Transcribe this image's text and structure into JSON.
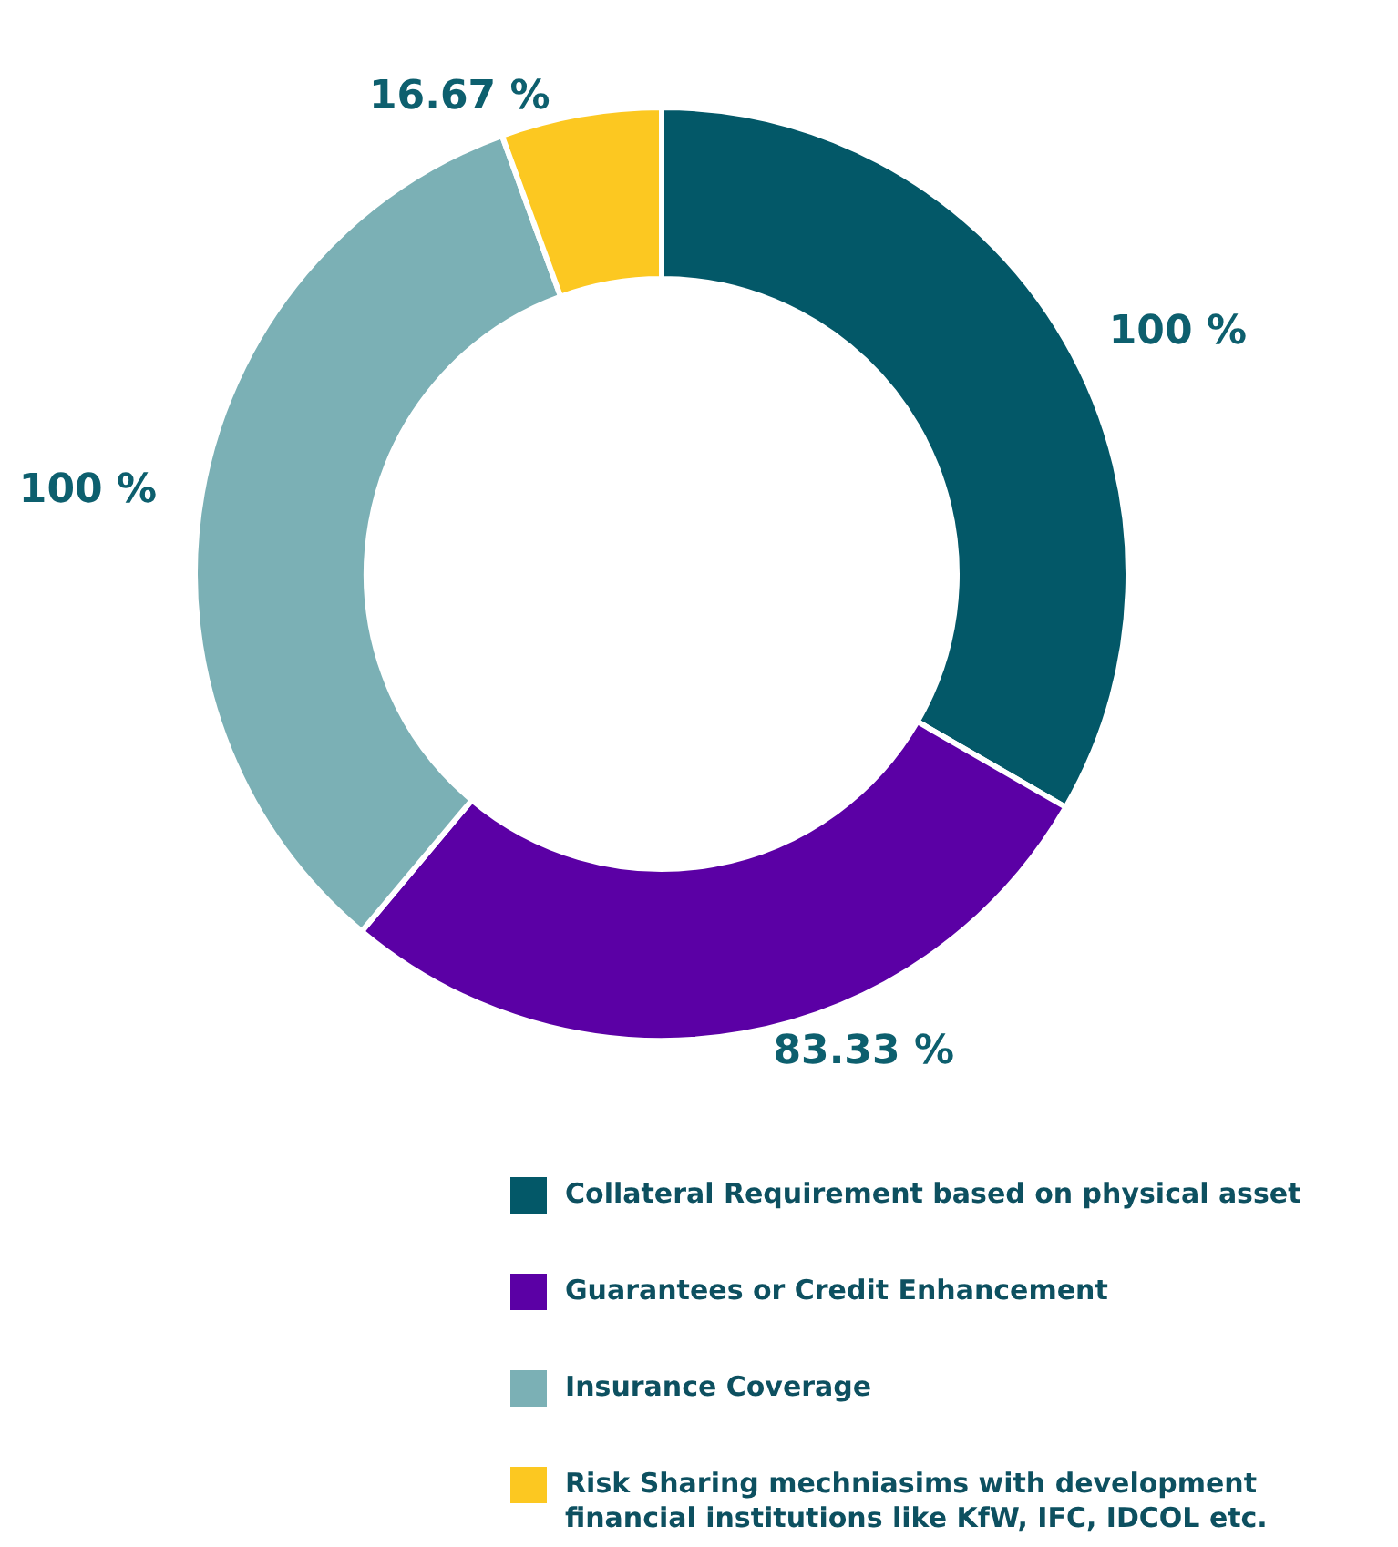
{
  "chart_data": {
    "type": "donut",
    "categories": [
      "Collateral Requirement based on physical asset",
      "Guarantees or Credit Enhancement",
      "Insurance Coverage",
      "Risk Sharing mechniasims with development financial institutions like KfW, IFC, IDCOL etc."
    ],
    "values": [
      100,
      83.33,
      100,
      16.67
    ],
    "colors": [
      "#035868",
      "#5b00a5",
      "#7bb0b5",
      "#fcc821"
    ],
    "value_labels": [
      "100 %",
      "83.33 %",
      "100 %",
      "16.67 %"
    ],
    "legend": "bottom right"
  }
}
